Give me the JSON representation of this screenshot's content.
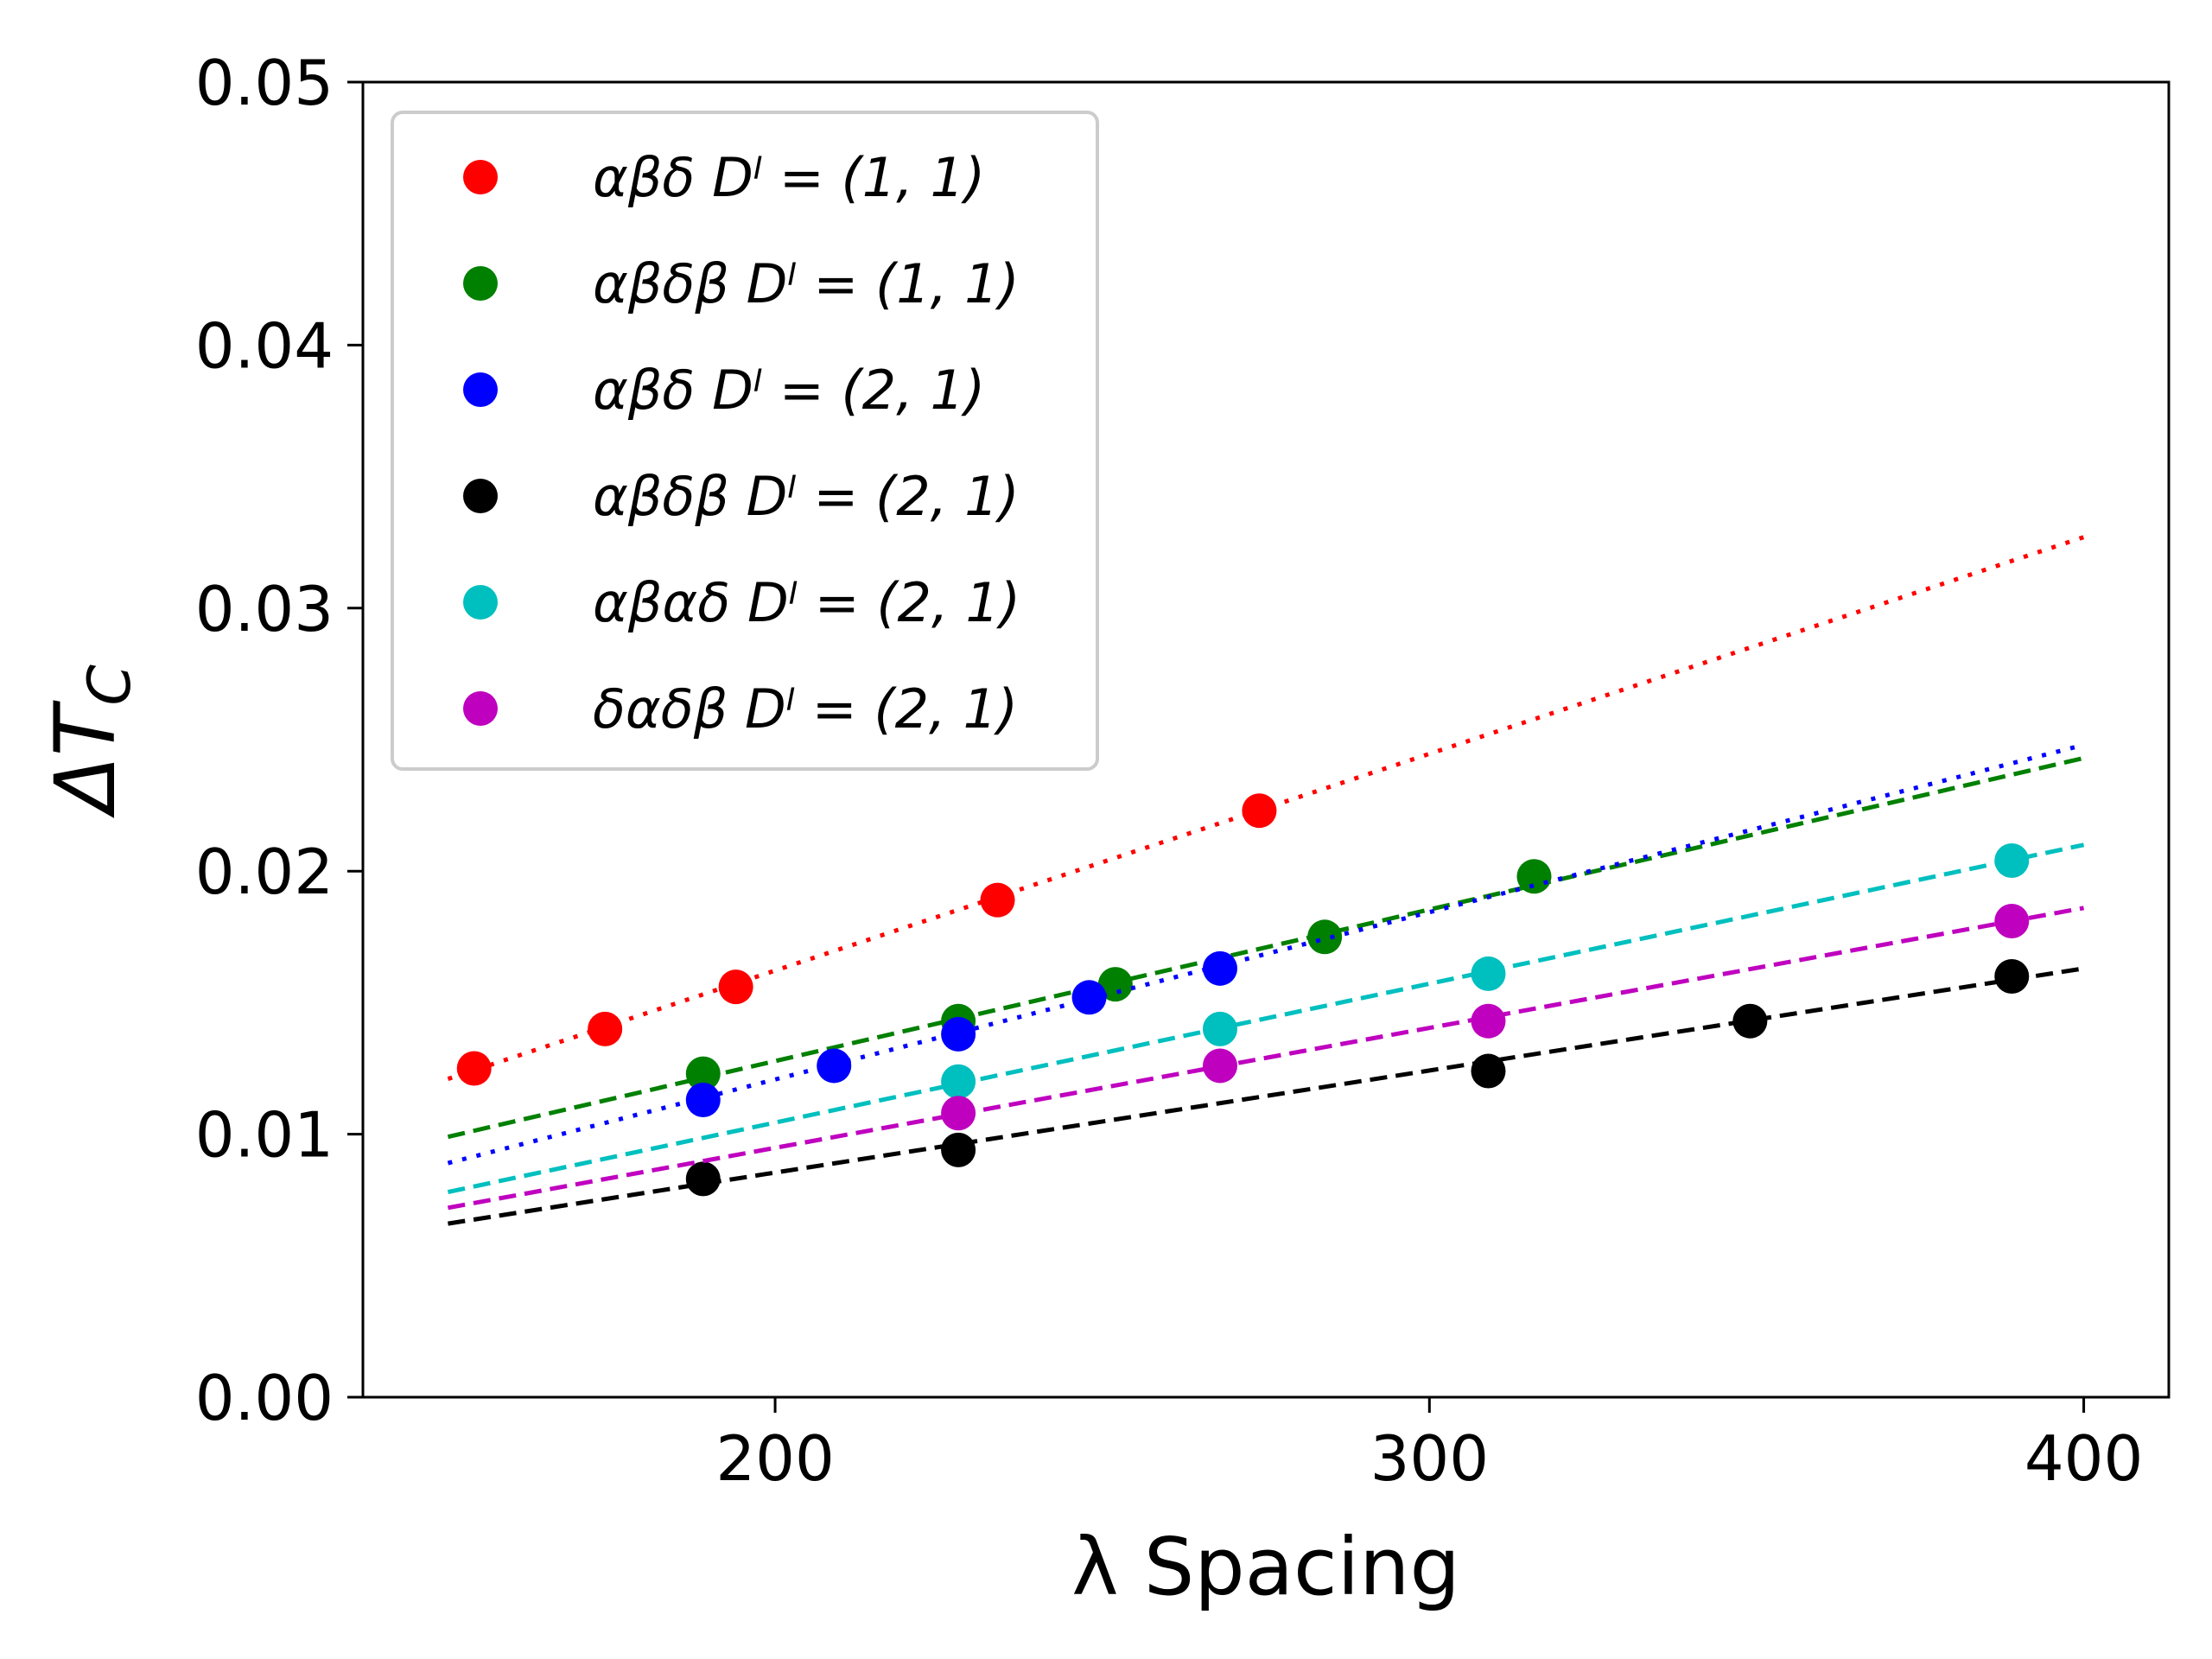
{
  "chart_data": {
    "type": "scatter",
    "title": "",
    "xlabel": "λ Spacing",
    "ylabel": "ΔT_C",
    "ylabel_main": "ΔT",
    "ylabel_sub": "C",
    "xlim": [
      137,
      413
    ],
    "ylim": [
      0.0,
      0.05
    ],
    "xticks": [
      200,
      300,
      400
    ],
    "yticks": [
      0.0,
      0.01,
      0.02,
      0.03,
      0.04,
      0.05
    ],
    "xtick_labels": [
      "200",
      "300",
      "400"
    ],
    "ytick_labels": [
      "0.00",
      "0.01",
      "0.02",
      "0.03",
      "0.04",
      "0.05"
    ],
    "grid": false,
    "legend_position": "top-left",
    "series": [
      {
        "name": "αβδ D^l = (1,1)",
        "legend_label": "αβδ Dˡ = (1, 1)",
        "color": "#ff0000",
        "line_style": "dotted",
        "x": [
          154,
          174,
          194,
          234,
          274
        ],
        "y": [
          0.0125,
          0.014,
          0.0156,
          0.0189,
          0.0223
        ],
        "fit_x": [
          150,
          400
        ],
        "fit_y": [
          0.0121,
          0.0327
        ]
      },
      {
        "name": "αβδβ D^l = (1,1)",
        "legend_label": "αβδβ Dˡ = (1, 1)",
        "color": "#008000",
        "line_style": "dashed",
        "x": [
          189,
          228,
          252,
          284,
          316
        ],
        "y": [
          0.0123,
          0.0143,
          0.0157,
          0.0175,
          0.0198
        ],
        "fit_x": [
          150,
          400
        ],
        "fit_y": [
          0.0099,
          0.0243
        ]
      },
      {
        "name": "αβδ D^l = (2,1)",
        "legend_label": "αβδ Dˡ = (2, 1)",
        "color": "#0000ff",
        "line_style": "dotted",
        "x": [
          189,
          209,
          228,
          248,
          268
        ],
        "y": [
          0.0113,
          0.0126,
          0.0138,
          0.0152,
          0.0163
        ],
        "fit_x": [
          150,
          400
        ],
        "fit_y": [
          0.0089,
          0.0248
        ]
      },
      {
        "name": "αβδβ D^l = (2,1)",
        "legend_label": "αβδβ Dˡ = (2, 1)",
        "color": "#000000",
        "line_style": "dashed",
        "x": [
          189,
          228,
          309,
          349,
          389
        ],
        "y": [
          0.0083,
          0.0094,
          0.0124,
          0.0143,
          0.016
        ],
        "fit_x": [
          150,
          400
        ],
        "fit_y": [
          0.0066,
          0.0163
        ]
      },
      {
        "name": "αβαδ D^l = (2,1)",
        "legend_label": "αβαδ Dˡ = (2, 1)",
        "color": "#00bfbf",
        "line_style": "dashed",
        "x": [
          228,
          268,
          309,
          389
        ],
        "y": [
          0.012,
          0.014,
          0.0161,
          0.0204
        ],
        "fit_x": [
          150,
          400
        ],
        "fit_y": [
          0.0078,
          0.021
        ]
      },
      {
        "name": "δαδβ D^l = (2,1)",
        "legend_label": "δαδβ Dˡ = (2, 1)",
        "color": "#bf00bf",
        "line_style": "dashed",
        "x": [
          228,
          268,
          309,
          389
        ],
        "y": [
          0.0108,
          0.0126,
          0.0143,
          0.0181
        ],
        "fit_x": [
          150,
          400
        ],
        "fit_y": [
          0.0072,
          0.0186
        ]
      }
    ]
  }
}
